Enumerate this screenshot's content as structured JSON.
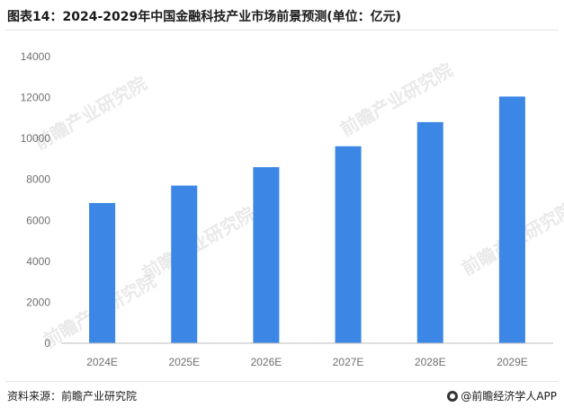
{
  "title": "图表14：2024-2029年中国金融科技产业市场前景预测(单位：亿元)",
  "source": "资料来源：前瞻产业研究院",
  "brand": "@前瞻经济学人APP",
  "watermark": "前瞻产业研究院",
  "colors": {
    "bar": "#3c87e6",
    "axis": "#bdbdbd",
    "tick_text": "#707070"
  },
  "chart_data": {
    "type": "bar",
    "categories": [
      "2024E",
      "2025E",
      "2026E",
      "2027E",
      "2028E",
      "2029E"
    ],
    "values": [
      6850,
      7700,
      8600,
      9620,
      10800,
      12050
    ],
    "ylim": [
      0,
      14000
    ],
    "yticks": [
      0,
      2000,
      4000,
      6000,
      8000,
      10000,
      12000,
      14000
    ],
    "grid": false,
    "legend": "none"
  }
}
